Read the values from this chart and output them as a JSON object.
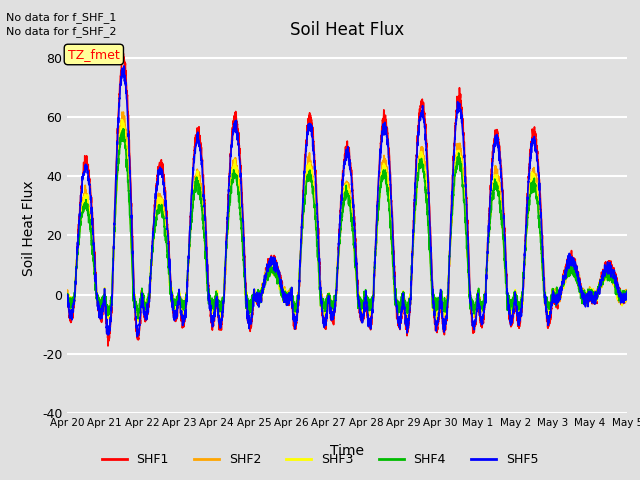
{
  "title": "Soil Heat Flux",
  "ylabel": "Soil Heat Flux",
  "xlabel": "Time",
  "annotations": [
    "No data for f_SHF_1",
    "No data for f_SHF_2"
  ],
  "tz_label": "TZ_fmet",
  "series_names": [
    "SHF1",
    "SHF2",
    "SHF3",
    "SHF4",
    "SHF5"
  ],
  "series_colors": [
    "#ff0000",
    "#ffa500",
    "#ffff00",
    "#00bb00",
    "#0000ff"
  ],
  "series_linewidths": [
    1.2,
    1.2,
    1.2,
    1.2,
    1.2
  ],
  "ylim": [
    -40,
    85
  ],
  "yticks": [
    -40,
    -20,
    0,
    20,
    40,
    60,
    80
  ],
  "background_color": "#e0e0e0",
  "plot_bg_color": "#e0e0e0",
  "grid_color": "#ffffff",
  "n_points": 3600,
  "day_amplitudes": [
    45,
    80,
    44,
    55,
    60,
    12,
    60,
    50,
    60,
    65,
    67,
    55,
    55,
    12,
    10
  ],
  "tick_labels": [
    "Apr 20",
    "Apr 21",
    "Apr 22",
    "Apr 23",
    "Apr 24",
    "Apr 25",
    "Apr 26",
    "Apr 27",
    "Apr 28",
    "Apr 29",
    "Apr 30",
    "May 1",
    "May 2",
    "May 3",
    "May 4",
    "May 5"
  ]
}
